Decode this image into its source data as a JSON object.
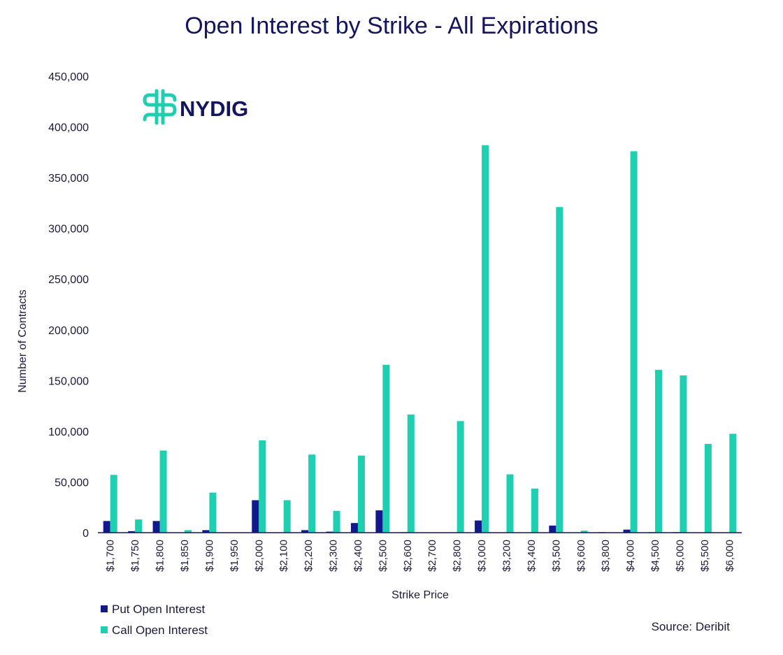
{
  "chart_data": {
    "type": "bar",
    "title": "Open Interest by Strike - All Expirations",
    "xlabel": "Strike Price",
    "ylabel": "Number of Contracts",
    "ylim": [
      0,
      450000
    ],
    "yticks": [
      0,
      50000,
      100000,
      150000,
      200000,
      250000,
      300000,
      350000,
      400000,
      450000
    ],
    "ytick_labels": [
      "0",
      "50,000",
      "100,000",
      "150,000",
      "200,000",
      "250,000",
      "300,000",
      "350,000",
      "400,000",
      "450,000"
    ],
    "categories": [
      "$1,700",
      "$1,750",
      "$1,800",
      "$1,850",
      "$1,900",
      "$1,950",
      "$2,000",
      "$2,100",
      "$2,200",
      "$2,300",
      "$2,400",
      "$2,500",
      "$2,600",
      "$2,700",
      "$2,800",
      "$3,000",
      "$3,200",
      "$3,400",
      "$3,500",
      "$3,600",
      "$3,800",
      "$4,000",
      "$4,500",
      "$5,000",
      "$5,500",
      "$6,000"
    ],
    "series": [
      {
        "name": "Put Open Interest",
        "color": "#13198a",
        "values": [
          11500,
          1500,
          11500,
          0,
          2500,
          0,
          32000,
          0,
          2500,
          1000,
          9500,
          22000,
          500,
          0,
          0,
          12000,
          0,
          0,
          7000,
          0,
          500,
          3000,
          500,
          500,
          0,
          0
        ]
      },
      {
        "name": "Call Open Interest",
        "color": "#1ecfb2",
        "values": [
          57000,
          13000,
          81000,
          2500,
          39500,
          0,
          91000,
          32000,
          77000,
          21500,
          76000,
          165500,
          116500,
          0,
          110000,
          382000,
          57500,
          43500,
          321000,
          2000,
          0,
          376000,
          160500,
          155000,
          87500,
          97500
        ]
      }
    ],
    "legend_position": "bottom-left"
  },
  "logo": {
    "text": "NYDIG",
    "color": "#1ecfb2"
  },
  "source": "Source: Deribit"
}
